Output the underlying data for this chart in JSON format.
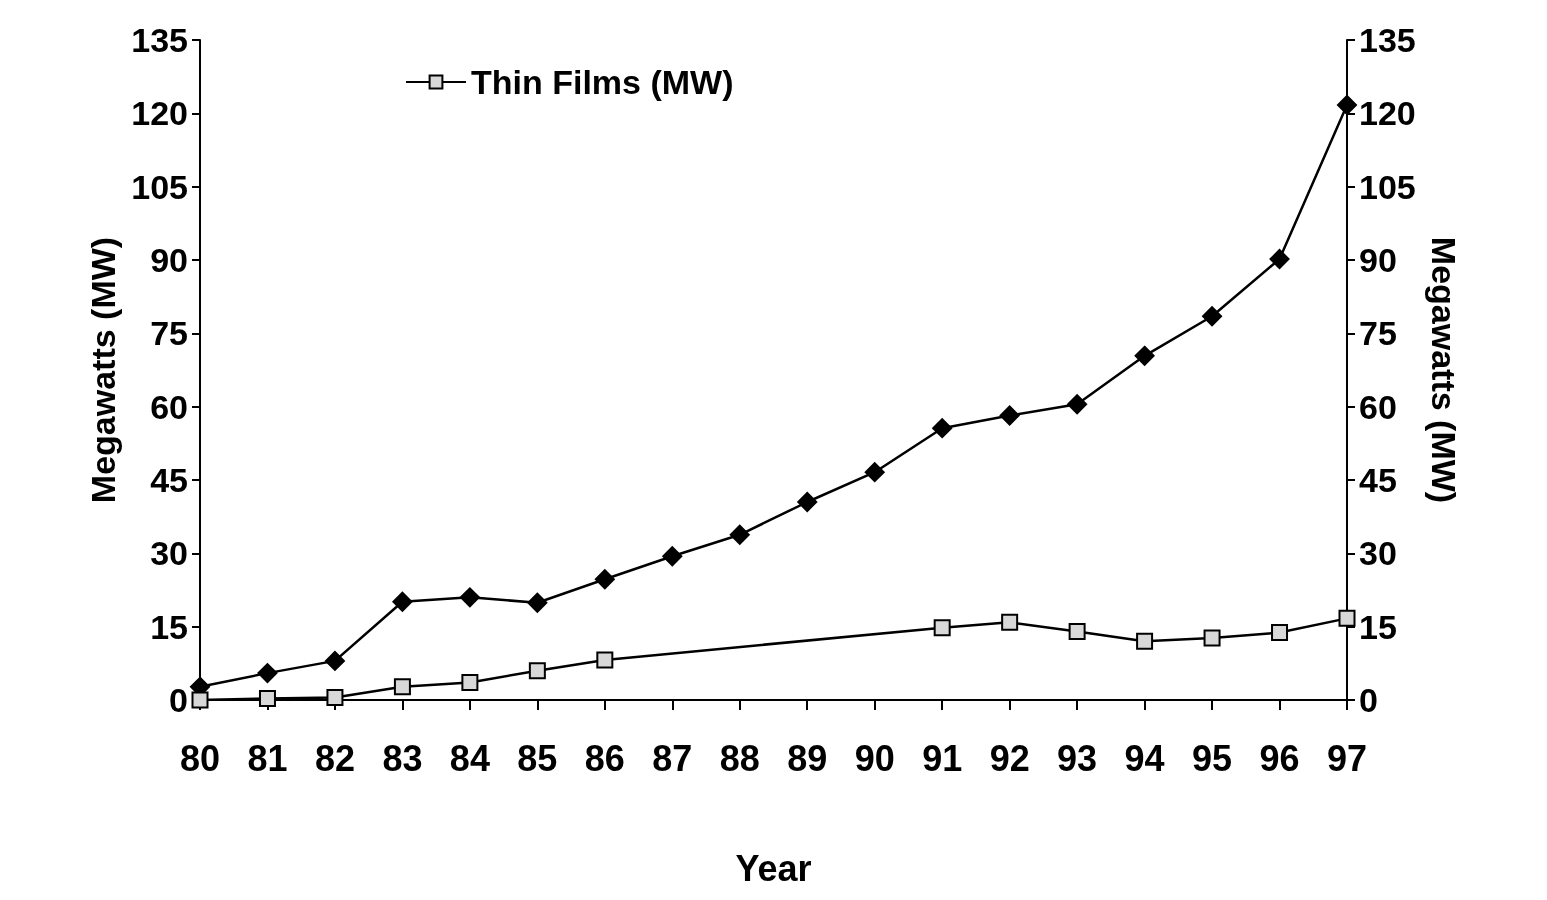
{
  "chart_data": {
    "type": "line",
    "xlabel": "Year",
    "ylabel": "Megawatts (MW)",
    "y2label": "Megawatts (MW)",
    "categories": [
      "80",
      "81",
      "82",
      "83",
      "84",
      "85",
      "86",
      "87",
      "88",
      "89",
      "90",
      "91",
      "92",
      "93",
      "94",
      "95",
      "96",
      "97"
    ],
    "series": [
      {
        "color": "#000000",
        "marker": "diamond",
        "values": [
          2.7,
          5.5,
          8.0,
          20.1,
          21.0,
          19.9,
          24.7,
          29.4,
          33.8,
          40.5,
          46.6,
          55.6,
          58.2,
          60.5,
          70.4,
          78.5,
          90.2,
          121.7
        ]
      },
      {
        "name": "Thin Films (MW)",
        "color": "#000000",
        "marker": "square",
        "values": [
          0,
          0.3,
          0.5,
          2.7,
          3.6,
          6.0,
          8.2,
          null,
          null,
          null,
          null,
          14.8,
          15.9,
          14.0,
          12.0,
          12.7,
          13.8,
          16.7
        ]
      }
    ],
    "ylim": [
      0,
      135
    ],
    "yticks": [
      0,
      15,
      30,
      45,
      60,
      75,
      90,
      105,
      120,
      135
    ],
    "y2lim": [
      0,
      135
    ],
    "y2ticks": [
      0,
      15,
      30,
      45,
      60,
      75,
      90,
      105,
      120,
      135
    ],
    "grid": false,
    "legend": "top left",
    "line_style": "solid"
  }
}
